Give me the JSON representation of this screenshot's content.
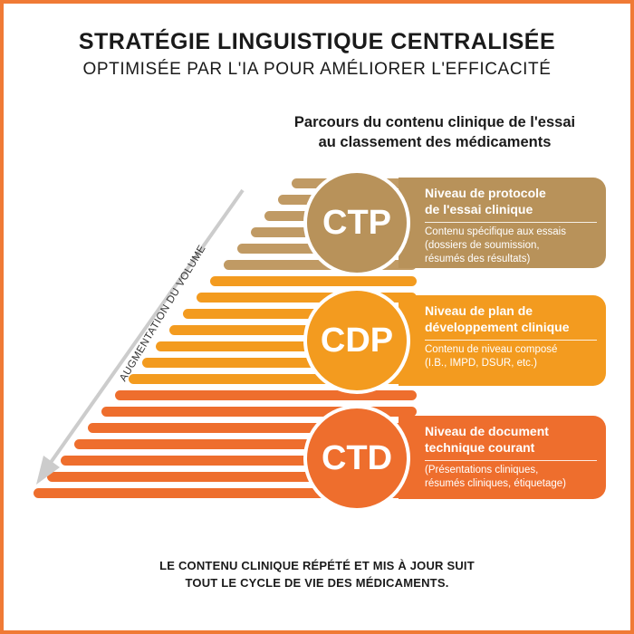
{
  "header": {
    "title": "STRATÉGIE LINGUISTIQUE CENTRALISÉE",
    "subtitle": "OPTIMISÉE PAR L'IA POUR AMÉLIORER L'EFFICACITÉ"
  },
  "journey": {
    "line1": "Parcours du contenu clinique de l'essai",
    "line2": "au classement des médicaments"
  },
  "volume_label": "AUGMENTATION DU VOLUME",
  "levels": [
    {
      "abbr": "CTP",
      "title_line1": "Niveau de protocole",
      "title_line2": "de l'essai clinique",
      "desc_lines": [
        "Contenu spécifique aux essais",
        "(dossiers de soumission,",
        "résumés des résultats)"
      ],
      "color": "#b8925a"
    },
    {
      "abbr": "CDP",
      "title_line1": "Niveau de plan de",
      "title_line2": "développement clinique",
      "desc_lines": [
        "Contenu de niveau composé",
        "(I.B., IMPD, DSUR, etc.)"
      ],
      "color": "#f39b1f"
    },
    {
      "abbr": "CTD",
      "title_line1": "Niveau de document",
      "title_line2": "technique courant",
      "desc_lines": [
        "(Présentations cliniques,",
        "résumés cliniques, étiquetage)"
      ],
      "color": "#ee6e2d"
    }
  ],
  "footer": {
    "line1": "LE CONTENU CLINIQUE RÉPÉTÉ ET MIS À JOUR SUIT",
    "line2": "TOUT LE CYCLE DE VIE DES MÉDICAMENTS."
  },
  "colors": {
    "frame": "#f07a35",
    "stripe_top": "#c09a64",
    "stripe_mid": "#f39b1f",
    "stripe_bottom": "#ee6e2d",
    "arrow": "#cccccc"
  }
}
